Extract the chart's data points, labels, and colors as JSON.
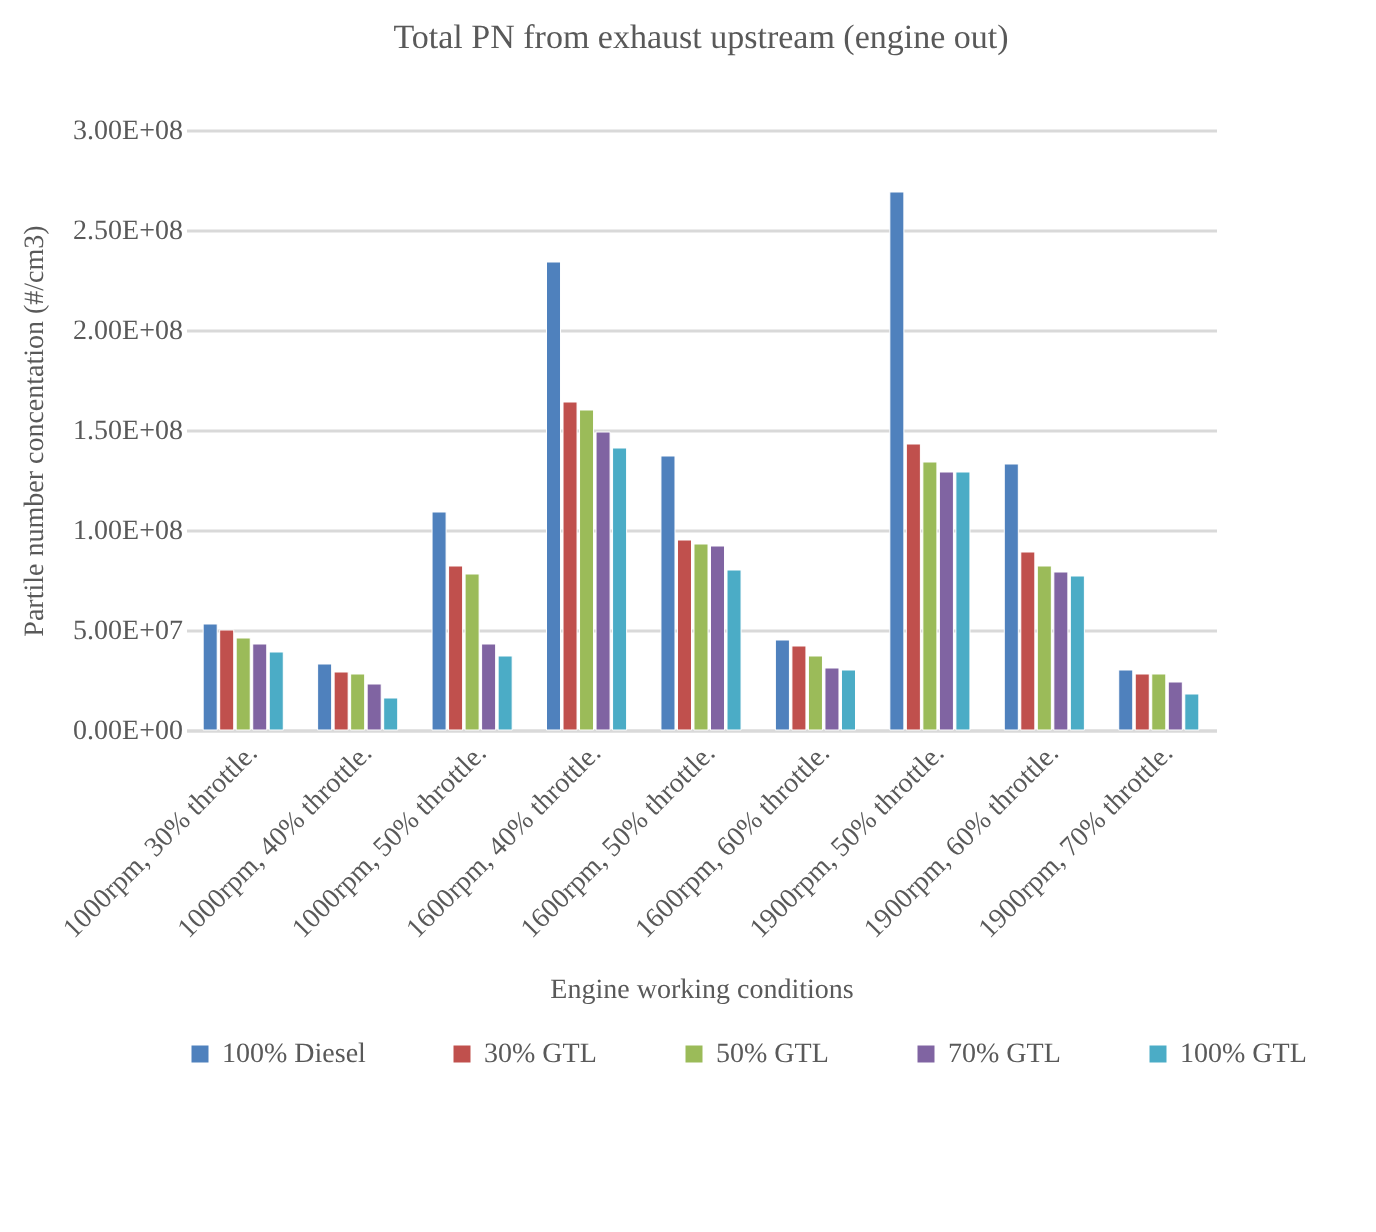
{
  "chart_data": {
    "type": "bar",
    "title": "Total PN from exhaust upstream  (engine out)",
    "xlabel": "Engine working conditions",
    "ylabel": "Partile number concentation (#/cm3)",
    "categories": [
      "1000rpm, 30% throttle.",
      "1000rpm, 40% throttle.",
      "1000rpm, 50% throttle.",
      "1600rpm, 40% throttle.",
      "1600rpm, 50% throttle.",
      "1600rpm, 60% throttle.",
      "1900rpm, 50% throttle.",
      "1900rpm, 60% throttle.",
      "1900rpm, 70% throttle."
    ],
    "series": [
      {
        "name": "100% Diesel",
        "color": "#4f81bd",
        "values": [
          53000000,
          33000000,
          109000000,
          234000000,
          137000000,
          45000000,
          269000000,
          133000000,
          30000000
        ]
      },
      {
        "name": "30% GTL",
        "color": "#c0504d",
        "values": [
          50000000,
          29000000,
          82000000,
          164000000,
          95000000,
          42000000,
          143000000,
          89000000,
          28000000
        ]
      },
      {
        "name": "50% GTL",
        "color": "#9bbb59",
        "values": [
          46000000,
          28000000,
          78000000,
          160000000,
          93000000,
          37000000,
          134000000,
          82000000,
          28000000
        ]
      },
      {
        "name": "70% GTL",
        "color": "#8064a2",
        "values": [
          43000000,
          23000000,
          43000000,
          149000000,
          92000000,
          31000000,
          129000000,
          79000000,
          24000000
        ]
      },
      {
        "name": "100% GTL",
        "color": "#4bacc6",
        "values": [
          39000000,
          16000000,
          37000000,
          141000000,
          80000000,
          30000000,
          129000000,
          77000000,
          18000000
        ]
      }
    ],
    "ylim": [
      0,
      300000000
    ],
    "yticks": [
      {
        "value": 0,
        "label": "0.00E+00"
      },
      {
        "value": 50000000,
        "label": "5.00E+07"
      },
      {
        "value": 100000000,
        "label": "1.00E+08"
      },
      {
        "value": 150000000,
        "label": "1.50E+08"
      },
      {
        "value": 200000000,
        "label": "2.00E+08"
      },
      {
        "value": 250000000,
        "label": "2.50E+08"
      },
      {
        "value": 300000000,
        "label": "3.00E+08"
      }
    ],
    "grid": "y",
    "legend": "bottom"
  }
}
